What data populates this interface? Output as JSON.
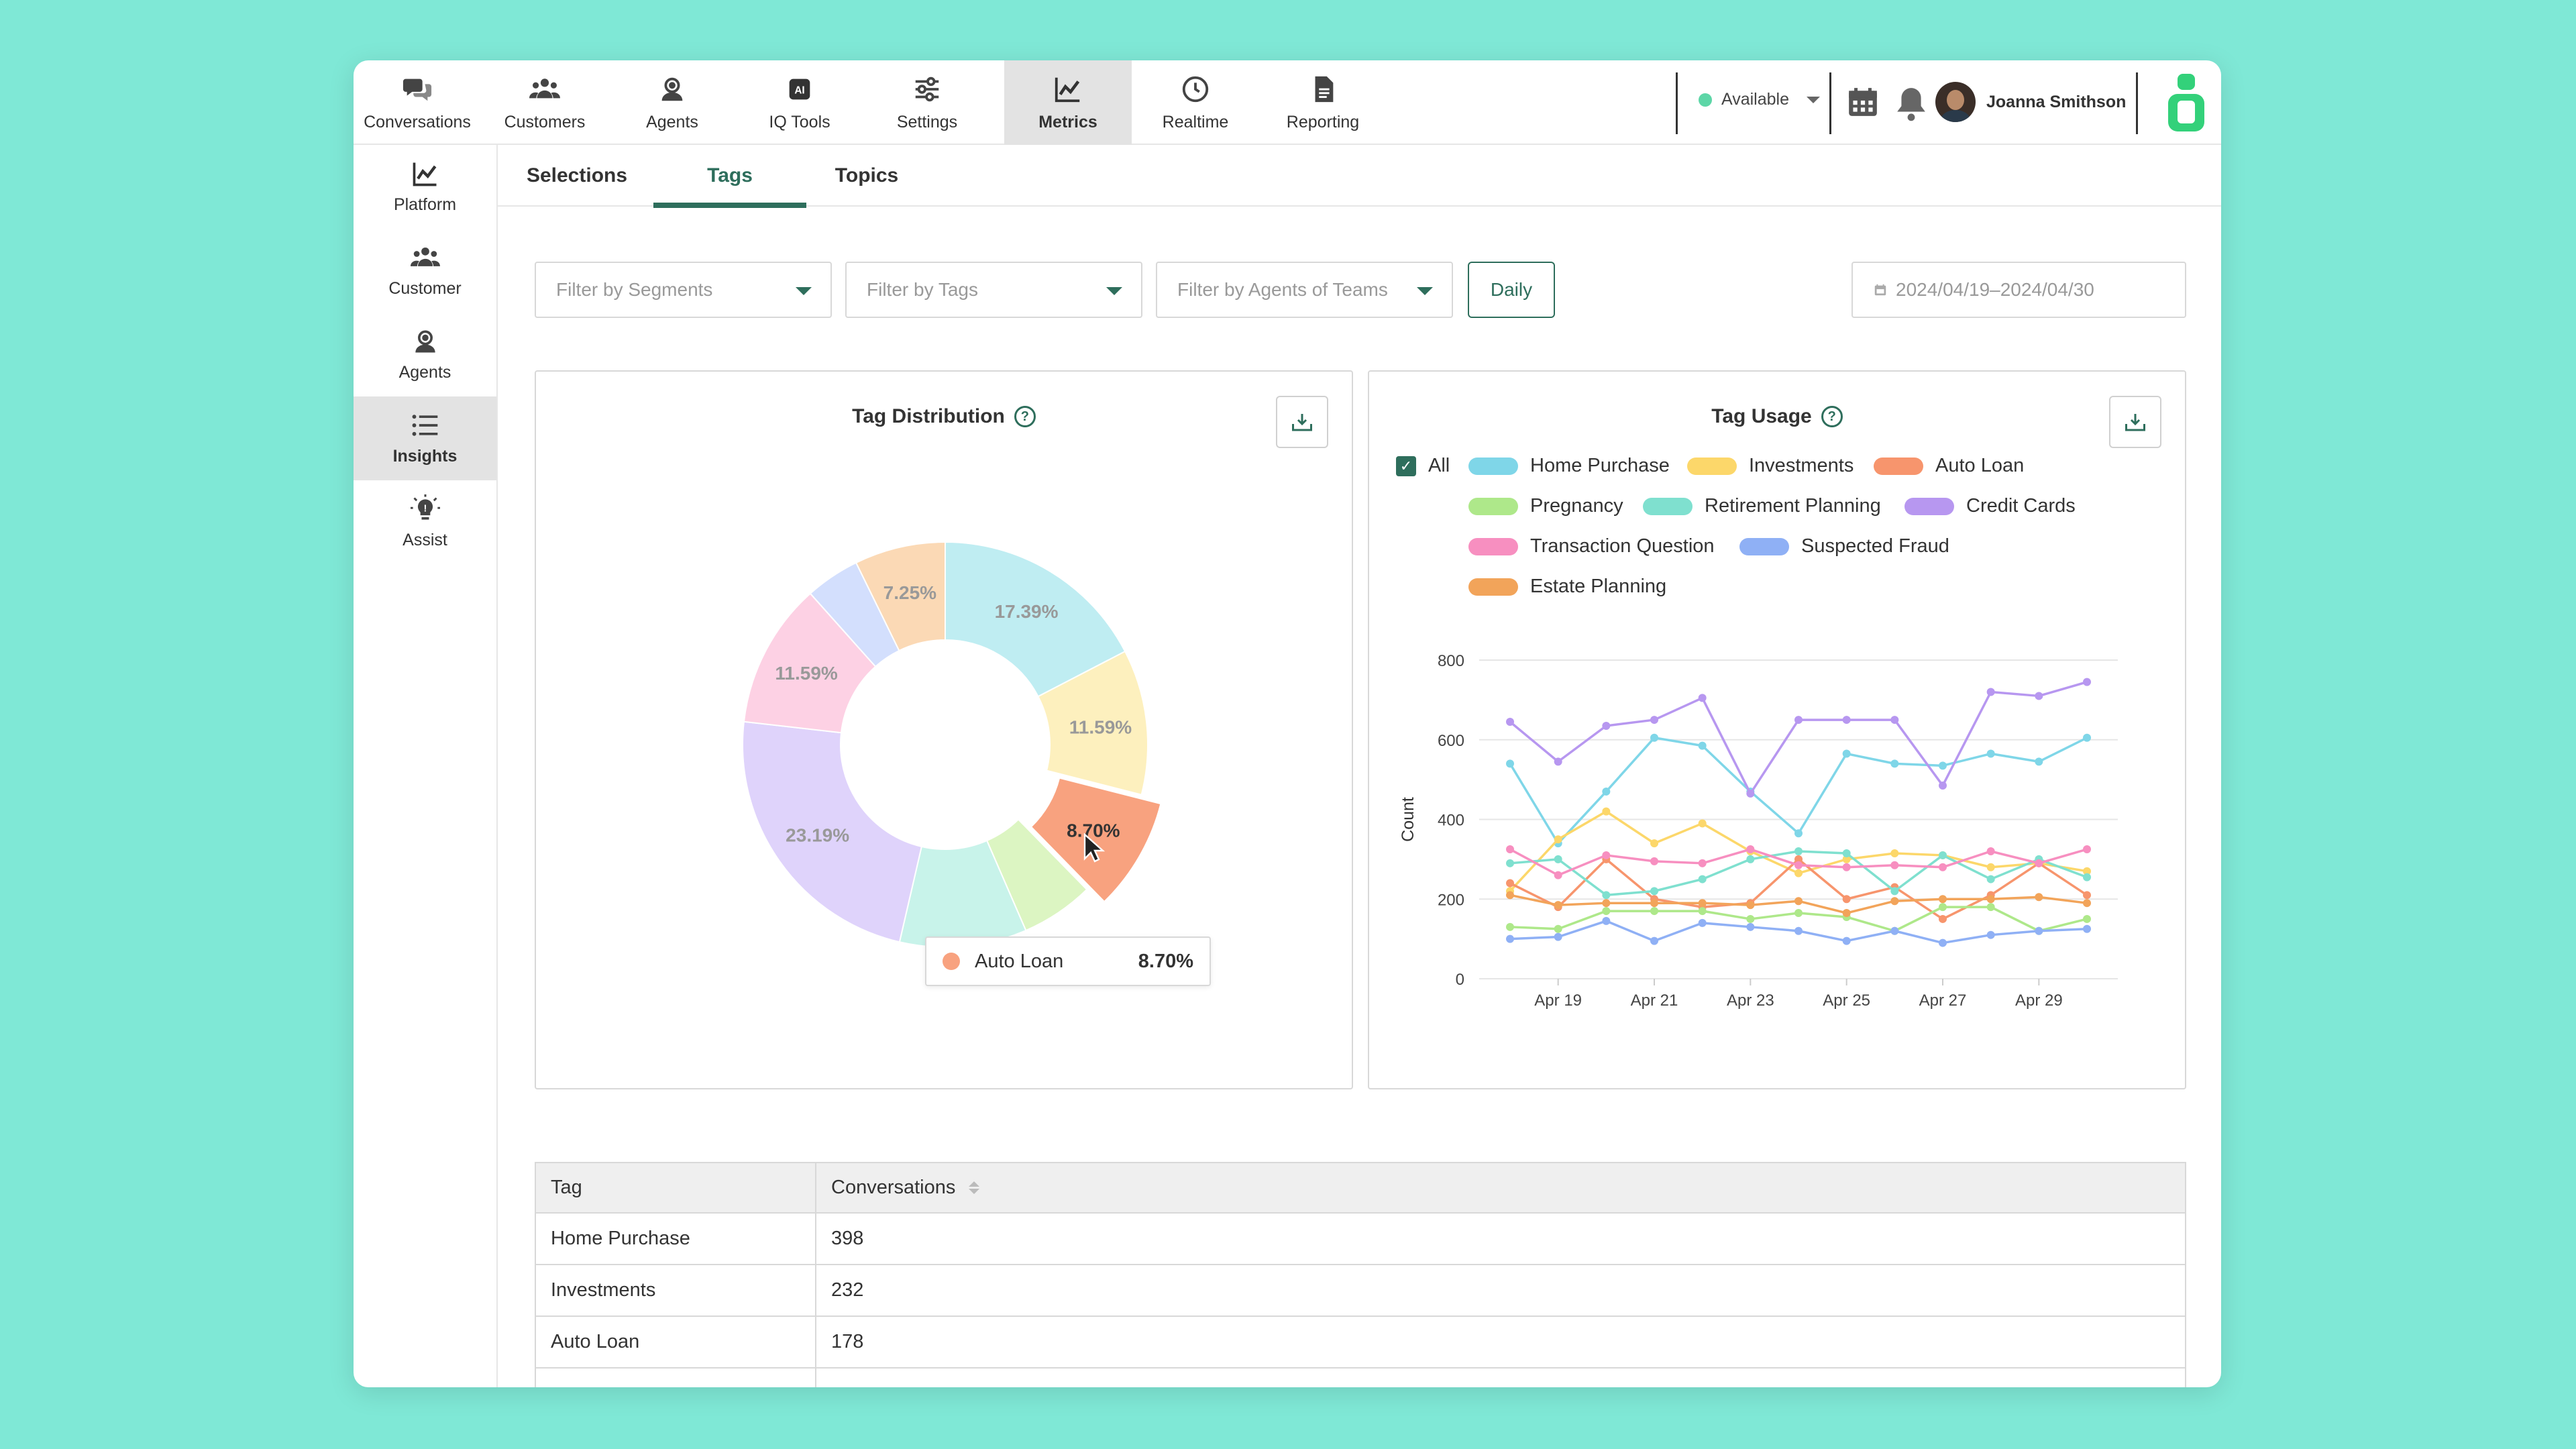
{
  "nav": {
    "items": [
      {
        "label": "Conversations",
        "icon": "chat-bubbles-icon"
      },
      {
        "label": "Customers",
        "icon": "users-icon"
      },
      {
        "label": "Agents",
        "icon": "headset-icon"
      },
      {
        "label": "IQ Tools",
        "icon": "ai-chip-icon"
      },
      {
        "label": "Settings",
        "icon": "sliders-icon"
      },
      {
        "label": "Metrics",
        "icon": "line-chart-icon"
      },
      {
        "label": "Realtime",
        "icon": "clock-icon"
      },
      {
        "label": "Reporting",
        "icon": "document-icon"
      }
    ],
    "active": "Metrics",
    "status": "Available",
    "user_name": "Joanna Smithson"
  },
  "sidebar": {
    "items": [
      {
        "label": "Platform",
        "icon": "line-chart-icon"
      },
      {
        "label": "Customer",
        "icon": "users-icon"
      },
      {
        "label": "Agents",
        "icon": "headset-icon"
      },
      {
        "label": "Insights",
        "icon": "list-icon"
      },
      {
        "label": "Assist",
        "icon": "lightbulb-icon"
      }
    ],
    "active": "Insights"
  },
  "subtabs": [
    "Selections",
    "Tags",
    "Topics"
  ],
  "filters": {
    "segments": "Filter by Segments",
    "tags": "Filter by Tags",
    "agents": "Filter by Agents of Teams",
    "daily": "Daily",
    "date_range": "2024/04/19–2024/04/30"
  },
  "tag_distribution": {
    "title": "Tag Distribution",
    "tooltip_label": "Auto Loan",
    "tooltip_value": "8.70%"
  },
  "tag_usage": {
    "title": "Tag Usage",
    "all_label": "All"
  },
  "colors": {
    "accent": "#2e6e5c",
    "brand": "#33d17a"
  },
  "chart_data": [
    {
      "type": "pie",
      "title": "Tag Distribution",
      "slices": [
        {
          "label": "Home Purchase",
          "value": 17.39,
          "color": "#bfedf2",
          "text": "17.39%"
        },
        {
          "label": "Investments",
          "value": 11.59,
          "color": "#fdf0be",
          "text": "11.59%"
        },
        {
          "label": "Auto Loan",
          "value": 8.7,
          "color": "#f8a27f",
          "text": "8.70%"
        },
        {
          "label": "Pregnancy",
          "value": 5.8,
          "color": "#dcf5c2",
          "text": ""
        },
        {
          "label": "Retirement Planning",
          "value": 10.14,
          "color": "#c8f3ea",
          "text": ""
        },
        {
          "label": "Credit Cards",
          "value": 23.19,
          "color": "#dfd3fb",
          "text": "23.19%"
        },
        {
          "label": "Transaction Question",
          "value": 11.59,
          "color": "#fdd1e4",
          "text": "11.59%"
        },
        {
          "label": "Suspected Fraud",
          "value": 4.35,
          "color": "#d3dffd",
          "text": ""
        },
        {
          "label": "Estate Planning",
          "value": 7.25,
          "color": "#fbd9b5",
          "text": "7.25%"
        }
      ]
    },
    {
      "type": "line",
      "title": "Tag Usage",
      "ylabel": "Count",
      "ylim": [
        0,
        800
      ],
      "yticks": [
        0,
        200,
        400,
        600,
        800
      ],
      "x": [
        "Apr 18",
        "Apr 19",
        "Apr 20",
        "Apr 21",
        "Apr 22",
        "Apr 23",
        "Apr 24",
        "Apr 25",
        "Apr 26",
        "Apr 27",
        "Apr 28",
        "Apr 29",
        "Apr 30"
      ],
      "xtick_labels": [
        "Apr 19",
        "Apr 21",
        "Apr 23",
        "Apr 25",
        "Apr 27",
        "Apr 29"
      ],
      "series": [
        {
          "name": "Home Purchase",
          "color": "#7fd6e8",
          "values": [
            540,
            340,
            470,
            605,
            585,
            470,
            365,
            565,
            540,
            535,
            565,
            545,
            605
          ]
        },
        {
          "name": "Investments",
          "color": "#fcd76a",
          "values": [
            220,
            350,
            420,
            340,
            390,
            320,
            265,
            300,
            315,
            310,
            280,
            290,
            270
          ]
        },
        {
          "name": "Auto Loan",
          "color": "#f7956d",
          "values": [
            240,
            180,
            300,
            200,
            180,
            190,
            300,
            200,
            230,
            150,
            210,
            290,
            210
          ]
        },
        {
          "name": "Pregnancy",
          "color": "#aee88a",
          "values": [
            130,
            125,
            170,
            170,
            170,
            150,
            165,
            155,
            120,
            180,
            180,
            120,
            150
          ]
        },
        {
          "name": "Retirement Planning",
          "color": "#7fe0cf",
          "values": [
            290,
            300,
            210,
            220,
            250,
            300,
            320,
            315,
            220,
            310,
            250,
            300,
            255
          ]
        },
        {
          "name": "Credit Cards",
          "color": "#b797f0",
          "values": [
            645,
            545,
            635,
            650,
            705,
            465,
            650,
            650,
            650,
            485,
            720,
            710,
            745
          ]
        },
        {
          "name": "Transaction Question",
          "color": "#f78fc0",
          "values": [
            325,
            260,
            310,
            295,
            290,
            325,
            285,
            280,
            285,
            280,
            320,
            290,
            325
          ]
        },
        {
          "name": "Suspected Fraud",
          "color": "#8fb0f5",
          "values": [
            100,
            105,
            145,
            95,
            140,
            130,
            120,
            95,
            120,
            90,
            110,
            120,
            125
          ]
        },
        {
          "name": "Estate Planning",
          "color": "#f2a45a",
          "values": [
            210,
            185,
            190,
            190,
            190,
            185,
            195,
            165,
            195,
            200,
            200,
            205,
            190
          ]
        }
      ]
    }
  ],
  "table": {
    "headers": [
      "Tag",
      "Conversations"
    ],
    "rows": [
      [
        "Home Purchase",
        "398"
      ],
      [
        "Investments",
        "232"
      ],
      [
        "Auto Loan",
        "178"
      ]
    ]
  }
}
